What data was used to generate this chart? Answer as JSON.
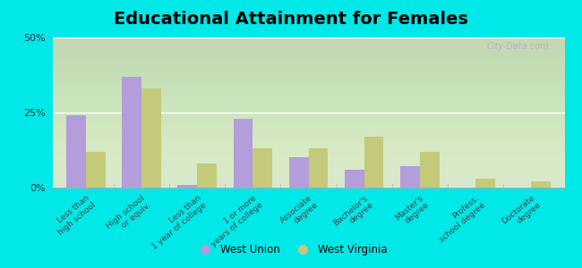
{
  "title": "Educational Attainment for Females",
  "categories": [
    "Less than\nhigh school",
    "High school\nor equiv.",
    "Less than\n1 year of college",
    "1 or more\nyears of college",
    "Associate\ndegree",
    "Bachelor's\ndegree",
    "Master's\ndegree",
    "Profess.\nschool degree",
    "Doctorate\ndegree"
  ],
  "west_union": [
    24.0,
    37.0,
    1.0,
    23.0,
    10.0,
    6.0,
    7.0,
    0.0,
    0.0
  ],
  "west_virginia": [
    12.0,
    33.0,
    8.0,
    13.0,
    13.0,
    17.0,
    12.0,
    3.0,
    2.0
  ],
  "wu_color": "#b39ddb",
  "wv_color": "#c5c97a",
  "outer_bg": "#00e8e8",
  "ylim": [
    0,
    50
  ],
  "yticks": [
    0,
    25,
    50
  ],
  "ytick_labels": [
    "0%",
    "25%",
    "50%"
  ],
  "bar_width": 0.35,
  "title_fontsize": 14,
  "label_fontsize": 6.5,
  "legend_labels": [
    "West Union",
    "West Virginia"
  ]
}
